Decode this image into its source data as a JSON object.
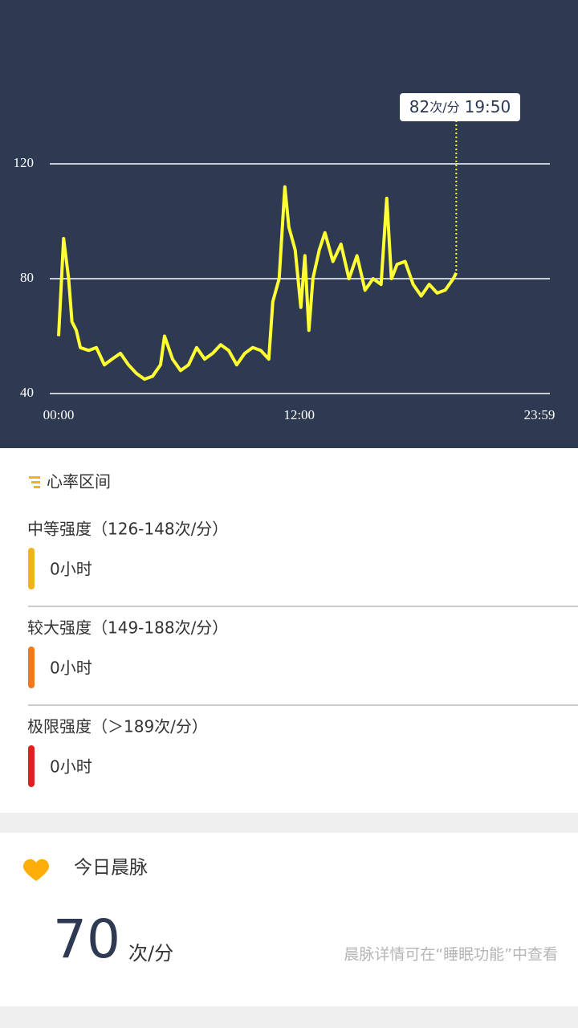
{
  "chart_data": {
    "type": "line",
    "x": [
      0,
      15,
      30,
      40,
      53,
      65,
      90,
      113,
      137,
      160,
      185,
      209,
      233,
      257,
      281,
      305,
      317,
      341,
      365,
      389,
      413,
      437,
      461,
      485,
      509,
      533,
      557,
      581,
      605,
      629,
      641,
      660,
      677,
      689,
      708,
      725,
      737,
      749,
      761,
      780,
      797,
      821,
      845,
      869,
      893,
      917,
      941,
      965,
      982,
      996,
      1013,
      1037,
      1061,
      1085,
      1109,
      1133,
      1157,
      1181,
      1190
    ],
    "series": [
      {
        "color": "#ffff33",
        "values": [
          60,
          94,
          80,
          65,
          62,
          56,
          55,
          56,
          50,
          52,
          54,
          50,
          47,
          45,
          46,
          50,
          60,
          52,
          48,
          50,
          56,
          52,
          54,
          57,
          55,
          50,
          54,
          56,
          55,
          52,
          72,
          80,
          112,
          98,
          90,
          70,
          88,
          62,
          80,
          90,
          96,
          86,
          92,
          80,
          88,
          76,
          80,
          78,
          108,
          80,
          85,
          86,
          78,
          74,
          78,
          75,
          76,
          80,
          82
        ]
      }
    ],
    "xlim": [
      0,
      1439
    ],
    "xticks": [
      {
        "value": 0,
        "label": "00:00"
      },
      {
        "value": 720,
        "label": "12:00"
      },
      {
        "value": 1439,
        "label": "23:59"
      }
    ],
    "ylim": [
      40,
      120
    ],
    "yticks": [
      40,
      80,
      120
    ],
    "grid": true,
    "tooltip": {
      "value": "82",
      "unit": "次/分",
      "time": "19:50"
    }
  },
  "zones": {
    "title": "心率区间",
    "items": [
      {
        "name": "中等强度（126-148次/分）",
        "value": "0小时",
        "color": "#f2b21a"
      },
      {
        "name": "较大强度（149-188次/分）",
        "value": "0小时",
        "color": "#ef7a1e"
      },
      {
        "name": "极限强度（＞189次/分）",
        "value": "0小时",
        "color": "#e0201e"
      }
    ]
  },
  "morning_pulse": {
    "title": "今日晨脉",
    "value": "70",
    "unit": "次/分",
    "note": "晨脉详情可在“睡眠功能”中查看"
  }
}
